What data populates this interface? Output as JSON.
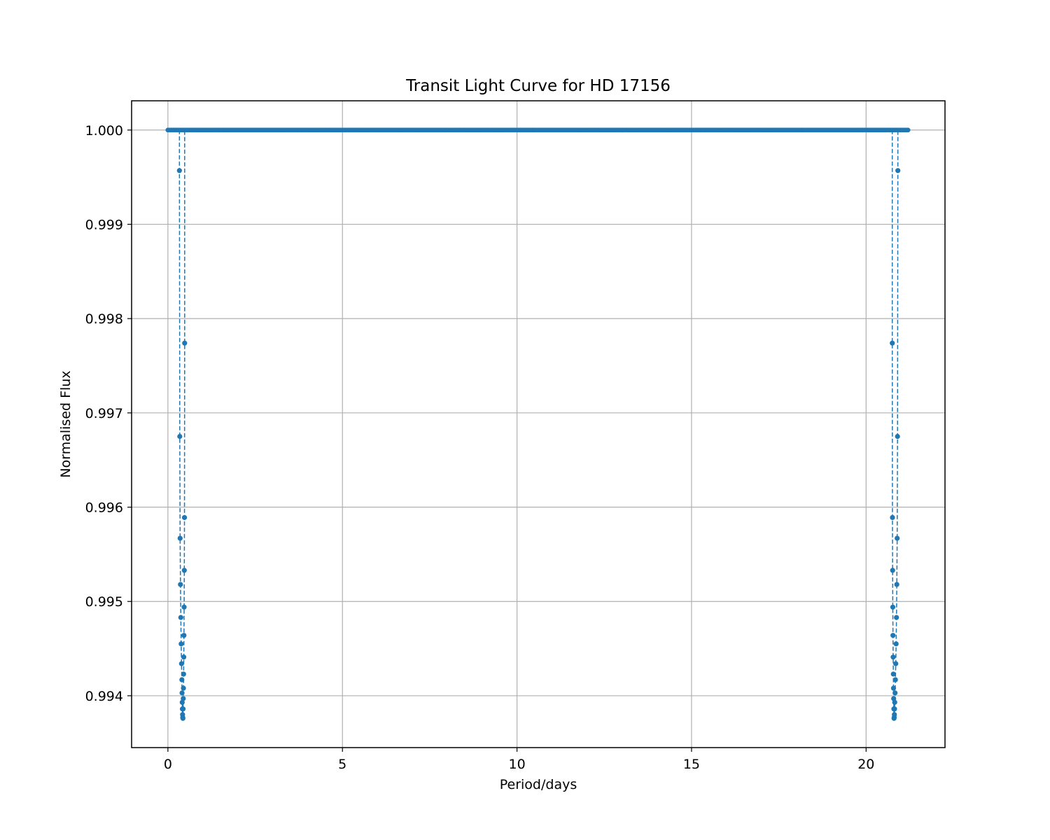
{
  "chart_data": {
    "type": "line",
    "title": "Transit Light Curve for HD 17156",
    "xlabel": "Period/days",
    "ylabel": "Normalised Flux",
    "xlim": [
      -1.04,
      22.26
    ],
    "ylim": [
      0.99345,
      1.00031
    ],
    "xticks": [
      0,
      5,
      10,
      15,
      20
    ],
    "xtick_labels": [
      "0",
      "5",
      "10",
      "15",
      "20"
    ],
    "yticks": [
      0.994,
      0.995,
      0.996,
      0.997,
      0.998,
      0.999,
      1.0
    ],
    "ytick_labels": [
      "0.994",
      "0.995",
      "0.996",
      "0.997",
      "0.998",
      "0.999",
      "1.000"
    ],
    "grid": true,
    "legend": "none",
    "colors": {
      "series": "#1f77b4",
      "grid": "#b0b0b0"
    },
    "baseline": {
      "x_start": 0.0,
      "x_end": 21.22,
      "x_step": 0.05,
      "y": 1.0
    },
    "series": [
      {
        "line_style": "dashed",
        "marker": "circle",
        "x": [
          0.33,
          0.34,
          0.35,
          0.36,
          0.37,
          0.38,
          0.39,
          0.4,
          0.405,
          0.41,
          0.415,
          0.42,
          0.425,
          0.43,
          0.435,
          0.44,
          0.445,
          0.45,
          0.455,
          0.46,
          0.465,
          0.47,
          0.475,
          0.48
        ],
        "y": [
          0.99957,
          0.99675,
          0.99567,
          0.99518,
          0.99483,
          0.99455,
          0.99434,
          0.99417,
          0.99403,
          0.99393,
          0.99386,
          0.9938,
          0.99377,
          0.99376,
          0.99386,
          0.99397,
          0.99408,
          0.99423,
          0.99441,
          0.99464,
          0.99494,
          0.99533,
          0.99589,
          0.99774
        ]
      },
      {
        "line_style": "dashed",
        "marker": "circle",
        "x": [
          20.75,
          20.755,
          20.76,
          20.765,
          20.77,
          20.775,
          20.78,
          20.785,
          20.79,
          20.795,
          20.8,
          20.805,
          20.81,
          20.815,
          20.82,
          20.83,
          20.84,
          20.85,
          20.86,
          20.87,
          20.88,
          20.89,
          20.9,
          20.91
        ],
        "y": [
          0.99774,
          0.99589,
          0.99533,
          0.99494,
          0.99464,
          0.99441,
          0.99423,
          0.99408,
          0.99397,
          0.99386,
          0.99376,
          0.99377,
          0.9938,
          0.99386,
          0.99393,
          0.99403,
          0.99417,
          0.99434,
          0.99455,
          0.99483,
          0.99518,
          0.99567,
          0.99675,
          0.99957
        ]
      }
    ]
  }
}
